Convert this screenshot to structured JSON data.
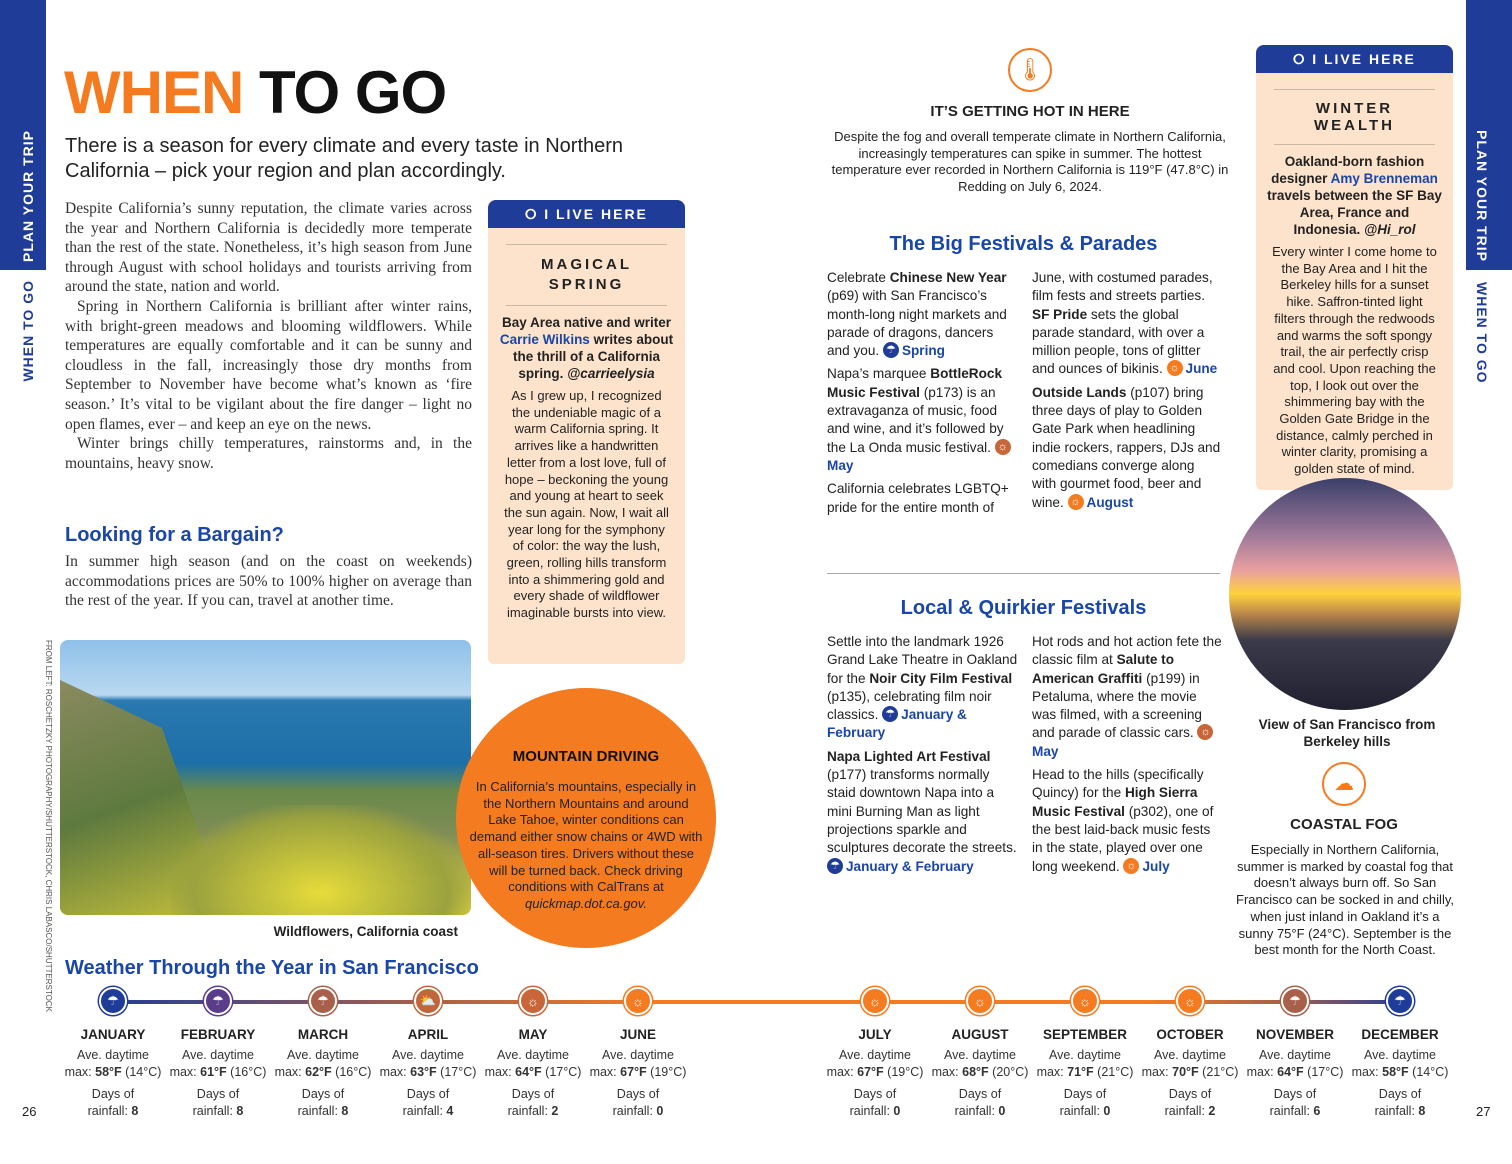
{
  "side_tabs": {
    "left_section": "PLAN YOUR TRIP",
    "left_chapter": "WHEN TO GO",
    "right_section": "PLAN YOUR TRIP",
    "right_chapter": "WHEN TO GO"
  },
  "colors": {
    "orange": "#f47b20",
    "navy": "#1f3c99",
    "heading_blue": "#1a46a8",
    "peach": "#fde3cc"
  },
  "title": {
    "part1": "WHEN",
    "part2": "TO GO"
  },
  "intro": "There is a season for every climate and every taste in Northern California – pick your region and plan accordingly.",
  "body": [
    [
      {
        "t": "Despite California’s sunny reputation, the climate varies across the year and Northern California is decidedly more temperate than the rest of the state. Nonetheless, it’s high season from June through August with school holidays and tourists arriving from around the state, nation and world."
      }
    ],
    [
      {
        "t": "Spring in Northern California is brilliant after winter rains, with bright-green meadows and blooming wildflowers. While temperatures are equally comfortable and it can be sunny and cloudless in the fall, increasingly those dry months from September to November have become what’s known as ‘fire season.’ It’s vital to be vigilant about the fire danger – light no open flames, ever – and keep an eye on the news."
      }
    ],
    [
      {
        "t": "Winter brings chilly temperatures, rainstorms and, in the mountains, heavy snow."
      }
    ]
  ],
  "bargain": {
    "heading": "Looking for a Bargain?",
    "text": "In summer high season (and on the coast on weekends) accommodations prices are 50% to 100% higher on average than the rest of the year. If you can, travel at another time."
  },
  "photo1": {
    "caption": "Wildflowers, California coast",
    "credit": "FROM LEFT: ROSCHETZKY PHOTOGRAPHY/SHUTTERSTOCK, CHRIS LABASCO/SHUTTERSTOCK"
  },
  "live_here_1": {
    "badge": "I LIVE HERE",
    "title": "MAGICAL SPRING",
    "intro": [
      {
        "t": "Bay Area native and writer "
      },
      {
        "t": "Carrie Wilkins",
        "s": "ln"
      },
      {
        "t": " writes about the thrill of a California spring. "
      },
      {
        "t": "@carrieelysia",
        "s": "i"
      }
    ],
    "quote": "As I grew up, I recognized the undeniable magic of a warm California spring. It arrives like a handwritten letter from a lost love, full of hope – beckoning the young and young at heart to seek the sun again. Now, I wait all year long for the symphony of color: the way the lush, green, rolling hills transform into a shimmering gold and every shade of wildflower imaginable bursts into view."
  },
  "mountain": {
    "title": "MOUNTAIN DRIVING",
    "text": "In California’s mountains, especially in the Northern Mountains and around Lake Tahoe, winter conditions can demand either snow chains or 4WD with all-season tires. Drivers without these will be turned back. Check driving conditions with CalTrans at ",
    "link": "quickmap.dot.ca.gov."
  },
  "hot": {
    "title": "IT’S GETTING HOT IN HERE",
    "text": "Despite the fog and overall temperate climate in Northern California, increasingly temperatures can spike in summer. The hottest temperature ever recorded in Northern California is 119°F (47.8°C) in Redding on July 6, 2024."
  },
  "big_festivals": {
    "heading": "The Big Festivals & Parades",
    "col1": [
      [
        {
          "t": "Celebrate "
        },
        {
          "t": "Chinese New Year",
          "s": "b"
        },
        {
          "t": " (p69) with San Francisco’s month-long night markets and parade of dragons, dancers and you. "
        },
        {
          "icon": "spring-rain",
          "c": "#1f3c99"
        },
        {
          "t": "Spring",
          "s": "l"
        }
      ],
      [
        {
          "t": "Napa’s marquee "
        },
        {
          "t": "BottleRock Music Festival",
          "s": "b"
        },
        {
          "t": " (p173) is an extravaganza of music, food and wine, and it’s followed by the La Onda music festival. "
        },
        {
          "icon": "sun",
          "c": "#c8663a"
        },
        {
          "t": "May",
          "s": "l"
        }
      ],
      [
        {
          "t": "California celebrates LGBTQ+ pride for the entire month of"
        }
      ]
    ],
    "col2": [
      [
        {
          "t": "June, with costumed parades, film fests and streets parties. "
        },
        {
          "t": "SF Pride",
          "s": "b"
        },
        {
          "t": " sets the global parade standard, with over a million people, tons of glitter and ounces of bikinis. "
        },
        {
          "icon": "sun",
          "c": "#f47b20"
        },
        {
          "t": "June",
          "s": "l"
        }
      ],
      [
        {
          "t": "Outside Lands",
          "s": "b"
        },
        {
          "t": " (p107) bring three days of play to Golden Gate Park when headlining indie rockers, rappers, DJs and comedians converge along with gourmet food, beer and wine. "
        },
        {
          "icon": "sun",
          "c": "#f47b20"
        },
        {
          "t": "August",
          "s": "l"
        }
      ]
    ]
  },
  "local_festivals": {
    "heading": "Local & Quirkier Festivals",
    "col1": [
      [
        {
          "t": "Settle into the landmark 1926 Grand Lake Theatre in Oakland for the "
        },
        {
          "t": "Noir City Film Festival",
          "s": "b"
        },
        {
          "t": " (p135), celebrating film noir classics. "
        },
        {
          "icon": "rain",
          "c": "#1f3c99"
        },
        {
          "t": "January & February",
          "s": "l"
        }
      ],
      [
        {
          "t": "Napa Lighted Art Festival",
          "s": "b"
        },
        {
          "t": " (p177) transforms normally staid downtown Napa into a mini Burning Man as light projections sparkle and sculptures decorate the streets. "
        },
        {
          "icon": "rain",
          "c": "#1f3c99"
        },
        {
          "t": "January & February",
          "s": "l"
        }
      ]
    ],
    "col2": [
      [
        {
          "t": "Hot rods and hot action fete the classic film at "
        },
        {
          "t": "Salute to American Graffiti",
          "s": "b"
        },
        {
          "t": " (p199) in Petaluma, where the movie was filmed, with a screening and parade of classic cars. "
        },
        {
          "icon": "sun",
          "c": "#c8663a"
        },
        {
          "t": "May",
          "s": "l"
        }
      ],
      [
        {
          "t": "Head to the hills (specifically Quincy) for the "
        },
        {
          "t": "High Sierra Music Festival",
          "s": "b"
        },
        {
          "t": " (p302), one of the best laid-back music fests in the state, played over one long weekend. "
        },
        {
          "icon": "sun",
          "c": "#f47b20"
        },
        {
          "t": "July",
          "s": "l"
        }
      ]
    ]
  },
  "live_here_2": {
    "badge": "I LIVE HERE",
    "title": "WINTER WEALTH",
    "intro": [
      {
        "t": "Oakland-born fashion designer "
      },
      {
        "t": "Amy Brenneman",
        "s": "ln"
      },
      {
        "t": " travels between the SF Bay Area, France and Indonesia. "
      },
      {
        "t": "@Hi_rol",
        "s": "i"
      }
    ],
    "quote": "Every winter I come home to the Bay Area and I hit the Berkeley hills for a sunset hike. Saffron-tinted light filters through the redwoods and warms the soft spongy trail, the air perfectly crisp and cool. Upon reaching the top, I look out over the shimmering bay with the Golden Gate Bridge in the distance, calmly perched in winter clarity, promising a golden state of mind."
  },
  "photo2": {
    "caption": "View of San Francisco from Berkeley hills"
  },
  "fog": {
    "title": "COASTAL FOG",
    "text": "Especially in Northern California, summer is marked by coastal fog that doesn’t always burn off. So San Francisco can be socked in and chilly, when just inland in Oakland it’s a sunny 75°F (24°C). September is the best month for the North Coast."
  },
  "weather": {
    "heading": "Weather Through the Year in San Francisco",
    "label_temp": "Ave. daytime",
    "label_max": "max:",
    "label_rain1": "Days of",
    "label_rain2": "rainfall:",
    "months": [
      {
        "name": "JANUARY",
        "f": "58°F",
        "c": "(14°C)",
        "rain": "8",
        "icon": "rain",
        "color": "#1f3c99"
      },
      {
        "name": "FEBRUARY",
        "f": "61°F",
        "c": "(16°C)",
        "rain": "8",
        "icon": "rain",
        "color": "#5a3d8a"
      },
      {
        "name": "MARCH",
        "f": "62°F",
        "c": "(16°C)",
        "rain": "8",
        "icon": "rain",
        "color": "#a8604a"
      },
      {
        "name": "APRIL",
        "f": "63°F",
        "c": "(17°C)",
        "rain": "4",
        "icon": "partly-cloudy",
        "color": "#c0663a"
      },
      {
        "name": "MAY",
        "f": "64°F",
        "c": "(17°C)",
        "rain": "2",
        "icon": "sun",
        "color": "#c8663a"
      },
      {
        "name": "JUNE",
        "f": "67°F",
        "c": "(19°C)",
        "rain": "0",
        "icon": "sun",
        "color": "#f47b20"
      },
      {
        "name": "JULY",
        "f": "67°F",
        "c": "(19°C)",
        "rain": "0",
        "icon": "sun",
        "color": "#f47b20"
      },
      {
        "name": "AUGUST",
        "f": "68°F",
        "c": "(20°C)",
        "rain": "0",
        "icon": "sun",
        "color": "#f47b20"
      },
      {
        "name": "SEPTEMBER",
        "f": "71°F",
        "c": "(21°C)",
        "rain": "0",
        "icon": "sun",
        "color": "#f47b20"
      },
      {
        "name": "OCTOBER",
        "f": "70°F",
        "c": "(21°C)",
        "rain": "2",
        "icon": "sun",
        "color": "#f47b20"
      },
      {
        "name": "NOVEMBER",
        "f": "64°F",
        "c": "(17°C)",
        "rain": "6",
        "icon": "rain",
        "color": "#a8604a"
      },
      {
        "name": "DECEMBER",
        "f": "58°F",
        "c": "(14°C)",
        "rain": "8",
        "icon": "rain",
        "color": "#1f3c99"
      }
    ]
  },
  "page_numbers": {
    "left": "26",
    "right": "27"
  }
}
